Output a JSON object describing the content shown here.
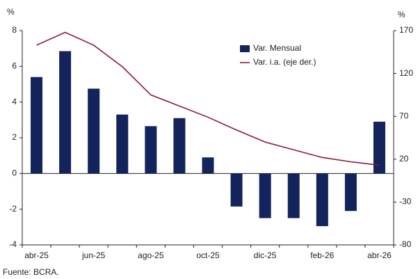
{
  "chart_data": {
    "type": "bar_line",
    "y_label": "%",
    "y2_label": "%",
    "categories": [
      "abr-25",
      null,
      "jun-25",
      null,
      "ago-25",
      null,
      "oct-25",
      null,
      "dic-25",
      null,
      "feb-26",
      null,
      "abr-26"
    ],
    "series": [
      {
        "name": "Var. Mensual",
        "color": "#13235b",
        "kind": "bar",
        "values": [
          5.4,
          6.85,
          4.75,
          3.3,
          2.65,
          3.1,
          0.9,
          -1.85,
          -2.5,
          -2.5,
          -2.95,
          -2.1,
          2.9
        ]
      },
      {
        "name": "Var. i.a. (eje der.)",
        "color": "#8b1a3a",
        "kind": "line",
        "axis": "y2",
        "values": [
          153,
          168,
          153,
          128,
          95,
          82,
          69,
          54,
          40,
          31,
          22,
          17,
          13
        ]
      }
    ],
    "ylim": [
      -4,
      8
    ],
    "yticks": [
      -4,
      -2,
      0,
      2,
      4,
      6,
      8
    ],
    "y2lim": [
      -80,
      170
    ],
    "y2ticks": [
      -80,
      -30,
      20,
      70,
      120,
      170
    ],
    "source": "Fuente: BCRA."
  }
}
